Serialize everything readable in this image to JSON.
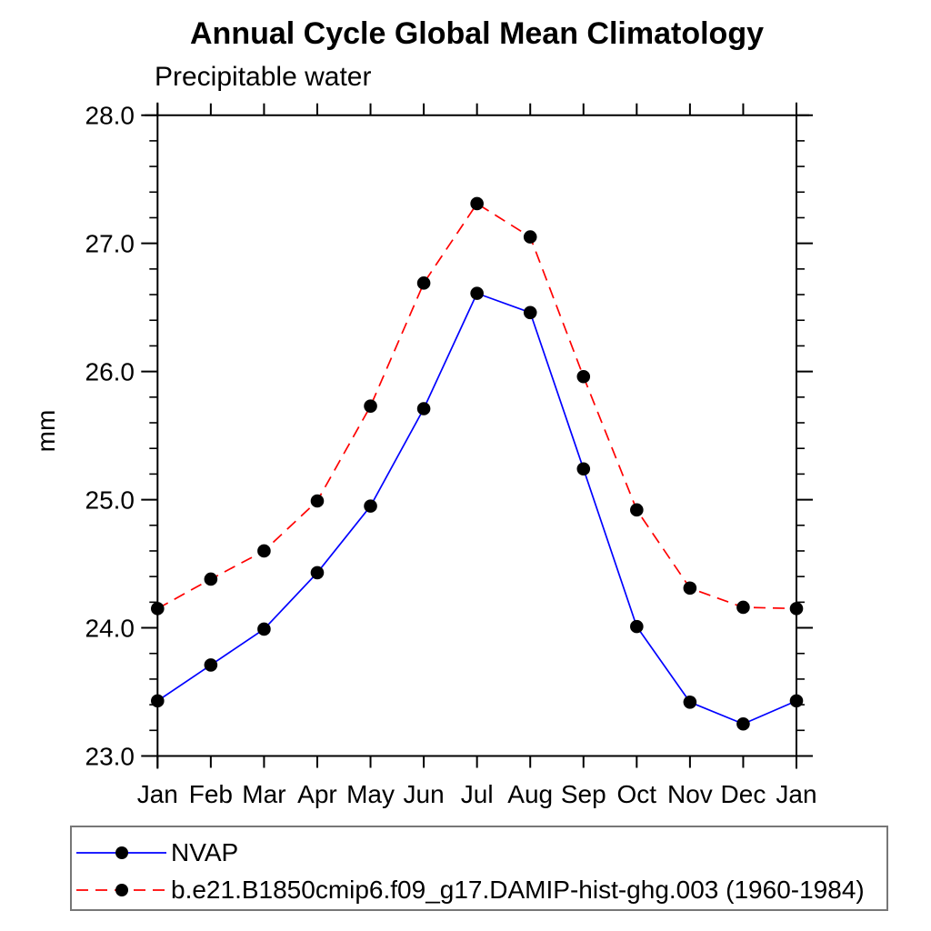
{
  "chart_data": {
    "type": "line",
    "title": "Annual Cycle Global Mean Climatology",
    "subtitle": "Precipitable water",
    "ylabel": "mm",
    "xlabel": "",
    "categories": [
      "Jan",
      "Feb",
      "Mar",
      "Apr",
      "May",
      "Jun",
      "Jul",
      "Aug",
      "Sep",
      "Oct",
      "Nov",
      "Dec",
      "Jan"
    ],
    "series": [
      {
        "name": "NVAP",
        "color": "#0000ff",
        "line_style": "solid",
        "marker": "filled-circle",
        "marker_color": "#000000",
        "values": [
          23.43,
          23.71,
          23.99,
          24.43,
          24.95,
          25.71,
          26.61,
          26.46,
          25.24,
          24.01,
          23.42,
          23.25,
          23.43
        ]
      },
      {
        "name": "b.e21.B1850cmip6.f09_g17.DAMIP-hist-ghg.003 (1960-1984)",
        "color": "#ff0000",
        "line_style": "dashed",
        "marker": "filled-circle",
        "marker_color": "#000000",
        "values": [
          24.15,
          24.38,
          24.6,
          24.99,
          25.73,
          26.69,
          27.31,
          27.05,
          25.96,
          24.92,
          24.31,
          24.16,
          24.15
        ]
      }
    ],
    "ylim": [
      23.0,
      28.0
    ],
    "ytick_labels": [
      "23.0",
      "24.0",
      "25.0",
      "26.0",
      "27.0",
      "28.0"
    ],
    "ytick_major": 1.0,
    "ytick_minor": 0.2,
    "grid": false,
    "legend_position": "bottom-left-box"
  }
}
